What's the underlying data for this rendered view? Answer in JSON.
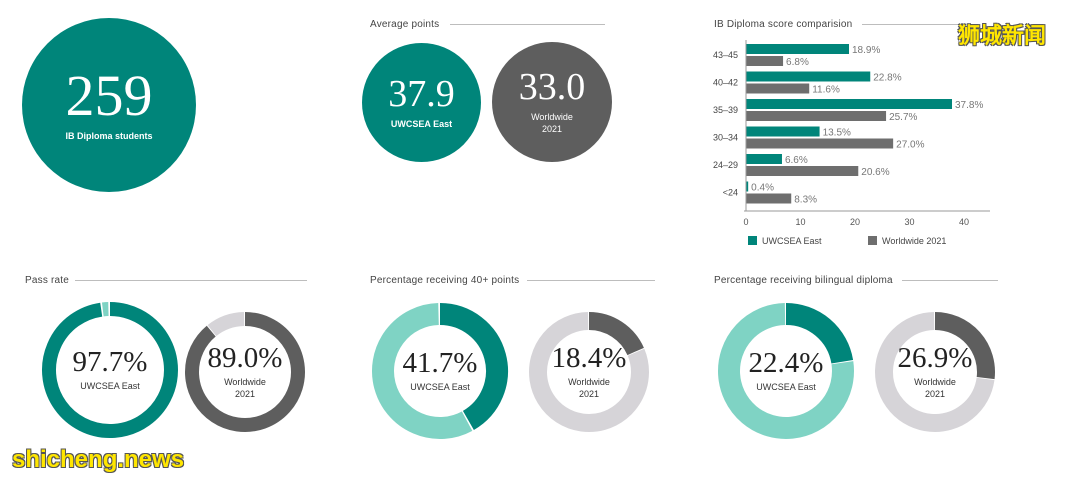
{
  "students": {
    "value": "259",
    "label": "IB Diploma students"
  },
  "average_points": {
    "title": "Average points",
    "east": {
      "value": "37.9",
      "label": "UWCSEA East"
    },
    "world": {
      "value": "33.0",
      "label1": "Worldwide",
      "label2": "2021"
    }
  },
  "score_comparison": {
    "title": "IB Diploma score comparision"
  },
  "pass_rate": {
    "title": "Pass rate",
    "east": {
      "value": "97.7%",
      "label": "UWCSEA East",
      "fraction": 0.977
    },
    "world": {
      "value": "89.0%",
      "label1": "Worldwide",
      "label2": "2021",
      "fraction": 0.89
    }
  },
  "forty_plus": {
    "title": "Percentage receiving 40+ points",
    "east": {
      "value": "41.7%",
      "label": "UWCSEA East",
      "fraction": 0.417
    },
    "world": {
      "value": "18.4%",
      "label1": "Worldwide",
      "label2": "2021",
      "fraction": 0.184
    }
  },
  "bilingual": {
    "title": "Percentage receiving bilingual diploma",
    "east": {
      "value": "22.4%",
      "label": "UWCSEA East",
      "fraction": 0.224
    },
    "world": {
      "value": "26.9%",
      "label1": "Worldwide",
      "label2": "2021",
      "fraction": 0.269
    }
  },
  "watermarks": {
    "top": "狮城新闻",
    "bottom": "shicheng.news"
  },
  "colors": {
    "teal": "#00857a",
    "teal_light": "#7fd3c4",
    "dark_gray": "#5e5e5e",
    "light_gray": "#d6d4d8"
  },
  "chart_data": {
    "type": "bar",
    "orientation": "horizontal",
    "title": "IB Diploma score comparision",
    "categories": [
      "43–45",
      "40–42",
      "35–39",
      "30–34",
      "24–29",
      "<24"
    ],
    "series": [
      {
        "name": "UWCSEA East",
        "color": "#00857a",
        "values": [
          18.9,
          22.8,
          37.8,
          13.5,
          6.6,
          0.4
        ],
        "labels": [
          "18.9%",
          "22.8%",
          "37.8%",
          "13.5%",
          "6.6%",
          "0.4%"
        ]
      },
      {
        "name": "Worldwide 2021",
        "color": "#6e6e6e",
        "values": [
          6.8,
          11.6,
          25.7,
          27.0,
          20.6,
          8.3
        ],
        "labels": [
          "6.8%",
          "11.6%",
          "25.7%",
          "27.0%",
          "20.6%",
          "8.3%"
        ]
      }
    ],
    "xlim": [
      0,
      45
    ],
    "xticks": [
      0,
      10,
      20,
      30,
      40
    ],
    "legend": "bottom"
  }
}
